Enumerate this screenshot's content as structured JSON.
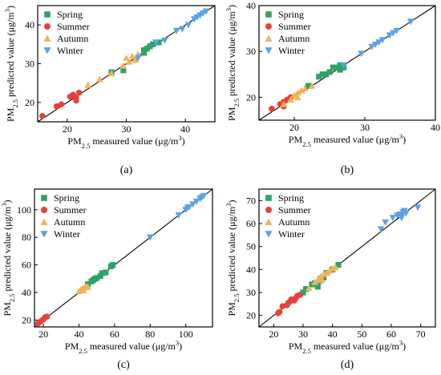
{
  "colors": {
    "Spring": "#2ca466",
    "Summer": "#e8413a",
    "Autumn": "#f2b35a",
    "Winter": "#5aa2e8",
    "line": "#000000",
    "frame": "#000000"
  },
  "legend_labels": [
    "Spring",
    "Summer",
    "Autumn",
    "Winter"
  ],
  "chart_data": [
    {
      "type": "scatter",
      "panel_label": "(a)",
      "xlabel": "PM2.5 measured value (μg/m³)",
      "ylabel": "PM2.5 predicted value (μg/m³)",
      "xlim": [
        15,
        45
      ],
      "ylim": [
        15,
        45
      ],
      "xticks": [
        20,
        30,
        40
      ],
      "yticks": [
        20,
        30,
        40
      ],
      "grid": false,
      "legend": "top-left",
      "reference_line": "y = x",
      "series": [
        {
          "name": "Spring",
          "marker": "square",
          "points": [
            [
              27.5,
              27.8
            ],
            [
              29.5,
              28.3
            ],
            [
              31.5,
              31.0
            ],
            [
              33.0,
              33.5
            ],
            [
              33.5,
              33.9
            ],
            [
              34.5,
              35.0
            ],
            [
              35.5,
              35.5
            ],
            [
              34.0,
              34.5
            ],
            [
              33.0,
              32.8
            ]
          ]
        },
        {
          "name": "Summer",
          "marker": "circle",
          "points": [
            [
              15.8,
              16.5
            ],
            [
              18.2,
              19.0
            ],
            [
              19.0,
              19.5
            ],
            [
              20.5,
              21.5
            ],
            [
              21.0,
              22.0
            ],
            [
              21.5,
              21.2
            ],
            [
              22.0,
              22.5
            ],
            [
              21.5,
              20.5
            ]
          ]
        },
        {
          "name": "Autumn",
          "marker": "triangle-up",
          "points": [
            [
              23.5,
              24.5
            ],
            [
              25.5,
              26.0
            ],
            [
              27.5,
              27.5
            ],
            [
              30.0,
              31.5
            ],
            [
              31.0,
              32.0
            ],
            [
              32.0,
              32.5
            ],
            [
              29.5,
              29.5
            ],
            [
              31.5,
              31.0
            ],
            [
              30.5,
              30.5
            ]
          ]
        },
        {
          "name": "Winter",
          "marker": "triangle-down",
          "points": [
            [
              35.0,
              35.5
            ],
            [
              36.5,
              36.0
            ],
            [
              38.5,
              38.5
            ],
            [
              39.5,
              39.0
            ],
            [
              40.5,
              40.0
            ],
            [
              41.5,
              41.5
            ],
            [
              42.0,
              42.0
            ],
            [
              42.5,
              42.5
            ],
            [
              43.0,
              43.0
            ],
            [
              43.5,
              43.5
            ],
            [
              32.0,
              31.5
            ]
          ]
        }
      ]
    },
    {
      "type": "scatter",
      "panel_label": "(b)",
      "xlabel": "PM2.5 measured value (μg/m³)",
      "ylabel": "PM2.5 predicted value (μg/m³)",
      "xlim": [
        15,
        40
      ],
      "ylim": [
        15,
        40
      ],
      "xticks": [
        20,
        30,
        40
      ],
      "yticks": [
        20,
        30,
        40
      ],
      "grid": false,
      "legend": "top-left",
      "reference_line": "y = x",
      "series": [
        {
          "name": "Spring",
          "marker": "square",
          "points": [
            [
              23.5,
              24.5
            ],
            [
              24.0,
              25.0
            ],
            [
              24.5,
              25.0
            ],
            [
              25.0,
              25.5
            ],
            [
              26.0,
              26.5
            ],
            [
              26.5,
              27.0
            ],
            [
              27.0,
              26.5
            ],
            [
              26.5,
              26.0
            ],
            [
              22.0,
              22.5
            ],
            [
              25.5,
              26.5
            ]
          ]
        },
        {
          "name": "Summer",
          "marker": "circle",
          "points": [
            [
              16.8,
              17.5
            ],
            [
              18.0,
              18.5
            ],
            [
              18.5,
              18.0
            ],
            [
              19.0,
              19.5
            ],
            [
              19.5,
              20.0
            ],
            [
              18.5,
              19.0
            ]
          ]
        },
        {
          "name": "Autumn",
          "marker": "triangle-up",
          "points": [
            [
              18.5,
              18.5
            ],
            [
              19.5,
              19.5
            ],
            [
              20.0,
              20.5
            ],
            [
              20.5,
              21.0
            ],
            [
              21.0,
              21.5
            ],
            [
              21.5,
              22.0
            ],
            [
              22.5,
              22.5
            ],
            [
              20.5,
              20.0
            ]
          ]
        },
        {
          "name": "Winter",
          "marker": "triangle-down",
          "points": [
            [
              27.0,
              27.0
            ],
            [
              29.5,
              29.5
            ],
            [
              31.0,
              31.0
            ],
            [
              31.5,
              31.5
            ],
            [
              32.5,
              32.5
            ],
            [
              33.5,
              33.5
            ],
            [
              34.0,
              34.0
            ],
            [
              34.5,
              34.5
            ],
            [
              36.5,
              36.5
            ],
            [
              32.0,
              32.0
            ]
          ]
        }
      ]
    },
    {
      "type": "scatter",
      "panel_label": "(c)",
      "xlabel": "PM2.5 measured value (μg/m³)",
      "ylabel": "PM2.5 predicted value (μg/m³)",
      "xlim": [
        15,
        115
      ],
      "ylim": [
        15,
        115
      ],
      "xticks": [
        20,
        40,
        60,
        80,
        100
      ],
      "yticks": [
        20,
        40,
        60,
        80,
        100
      ],
      "grid": false,
      "legend": "top-left",
      "reference_line": "y = x",
      "series": [
        {
          "name": "Spring",
          "marker": "square",
          "points": [
            [
              45.0,
              46.0
            ],
            [
              47.0,
              48.0
            ],
            [
              48.0,
              49.0
            ],
            [
              49.0,
              50.0
            ],
            [
              50.0,
              50.5
            ],
            [
              53.0,
              54.0
            ],
            [
              55.0,
              54.5
            ],
            [
              58.0,
              59.0
            ],
            [
              59.0,
              60.0
            ],
            [
              52.0,
              52.0
            ]
          ]
        },
        {
          "name": "Summer",
          "marker": "circle",
          "points": [
            [
              17.0,
              17.5
            ],
            [
              18.0,
              18.5
            ],
            [
              19.0,
              19.5
            ],
            [
              20.0,
              20.5
            ],
            [
              21.0,
              22.0
            ],
            [
              22.0,
              22.5
            ]
          ]
        },
        {
          "name": "Autumn",
          "marker": "triangle-up",
          "points": [
            [
              40.0,
              41.0
            ],
            [
              41.0,
              42.0
            ],
            [
              42.0,
              43.0
            ],
            [
              43.0,
              43.5
            ],
            [
              44.0,
              44.5
            ],
            [
              45.0,
              44.0
            ],
            [
              42.5,
              41.5
            ]
          ]
        },
        {
          "name": "Winter",
          "marker": "triangle-down",
          "points": [
            [
              80.0,
              80.0
            ],
            [
              96.0,
              96.0
            ],
            [
              100.0,
              100.0
            ],
            [
              102.0,
              102.0
            ],
            [
              104.0,
              104.0
            ],
            [
              106.0,
              106.0
            ],
            [
              108.0,
              108.0
            ],
            [
              109.0,
              109.0
            ],
            [
              110.0,
              110.0
            ],
            [
              101.0,
              101.5
            ]
          ]
        }
      ]
    },
    {
      "type": "scatter",
      "panel_label": "(d)",
      "xlabel": "PM2.5 measured value (μg/m³)",
      "ylabel": "PM2.5 predicted value (μg/m³)",
      "xlim": [
        15,
        75
      ],
      "ylim": [
        15,
        75
      ],
      "xticks": [
        20,
        30,
        40,
        50,
        60,
        70
      ],
      "yticks": [
        20,
        30,
        40,
        50,
        60,
        70
      ],
      "grid": false,
      "legend": "top-left",
      "reference_line": "y = x",
      "series": [
        {
          "name": "Spring",
          "marker": "square",
          "points": [
            [
              30.0,
              30.0
            ],
            [
              31.0,
              31.5
            ],
            [
              33.0,
              33.5
            ],
            [
              34.0,
              34.0
            ],
            [
              35.0,
              32.5
            ],
            [
              36.0,
              36.0
            ],
            [
              37.0,
              36.5
            ],
            [
              38.0,
              38.5
            ],
            [
              40.0,
              40.0
            ],
            [
              42.0,
              42.0
            ],
            [
              35.5,
              35.0
            ]
          ]
        },
        {
          "name": "Summer",
          "marker": "circle",
          "points": [
            [
              21.5,
              21.0
            ],
            [
              22.0,
              21.5
            ],
            [
              23.0,
              24.0
            ],
            [
              24.5,
              24.5
            ],
            [
              25.5,
              26.0
            ],
            [
              26.0,
              27.0
            ],
            [
              27.0,
              26.5
            ],
            [
              27.5,
              27.5
            ],
            [
              28.0,
              28.5
            ],
            [
              29.0,
              29.0
            ],
            [
              25.0,
              25.5
            ]
          ]
        },
        {
          "name": "Autumn",
          "marker": "triangle-up",
          "points": [
            [
              32.0,
              32.0
            ],
            [
              34.0,
              34.5
            ],
            [
              35.0,
              35.5
            ],
            [
              36.0,
              37.0
            ],
            [
              37.0,
              38.0
            ],
            [
              38.0,
              38.5
            ],
            [
              39.0,
              39.5
            ],
            [
              40.0,
              40.5
            ],
            [
              41.0,
              41.0
            ],
            [
              36.5,
              35.5
            ]
          ]
        },
        {
          "name": "Winter",
          "marker": "triangle-down",
          "points": [
            [
              56.5,
              57.5
            ],
            [
              58.0,
              60.5
            ],
            [
              60.5,
              62.5
            ],
            [
              62.0,
              63.5
            ],
            [
              63.0,
              64.0
            ],
            [
              64.0,
              65.0
            ],
            [
              64.5,
              65.5
            ],
            [
              65.0,
              64.5
            ],
            [
              69.0,
              67.0
            ],
            [
              63.5,
              62.5
            ]
          ]
        }
      ]
    }
  ]
}
